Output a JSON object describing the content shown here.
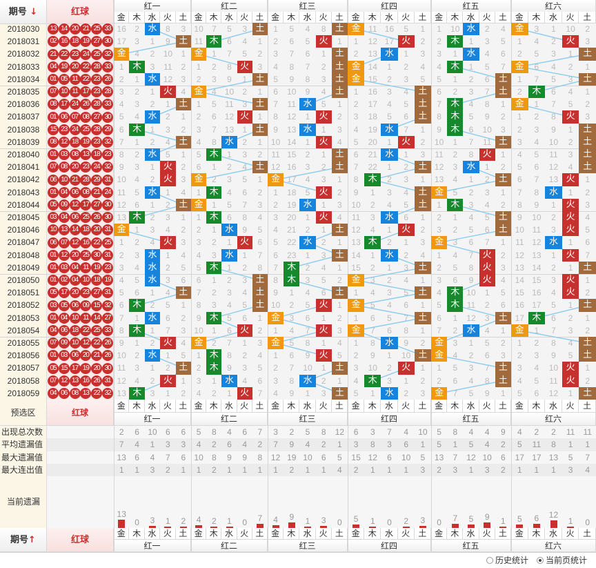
{
  "header": {
    "issue_label": "期号",
    "issue_sort_icon": "arrow-down-icon",
    "red_label": "红球"
  },
  "groups": [
    "红一",
    "红二",
    "红三",
    "红四",
    "红五",
    "红六"
  ],
  "elements": [
    "金",
    "木",
    "水",
    "火",
    "土"
  ],
  "element_colors": {
    "金": "#f0980f",
    "木": "#15892c",
    "水": "#1684dc",
    "火": "#c8302e",
    "土": "#a06a3c"
  },
  "line_color": "#8ccbee",
  "number_element_cycle": [
    "水",
    "土",
    "木",
    "木",
    "土",
    "火",
    "火",
    "土",
    "金",
    "金",
    "土",
    "水"
  ],
  "first_row_omission": [
    [
      16,
      2,
      null,
      8,
      3
    ],
    [
      10,
      7,
      5,
      3,
      null
    ],
    [
      1,
      5,
      4,
      8,
      null
    ],
    [
      null,
      11,
      16,
      5,
      1
    ],
    [
      1,
      10,
      null,
      2,
      4
    ],
    [
      null,
      3,
      1,
      10,
      2
    ]
  ],
  "rows": [
    {
      "issue": "2018030",
      "balls": [
        "13",
        "14",
        "20",
        "21",
        "25",
        "33"
      ]
    },
    {
      "issue": "2018031",
      "balls": [
        "02",
        "16",
        "18",
        "19",
        "27",
        "30"
      ]
    },
    {
      "issue": "2018032",
      "balls": [
        "21",
        "22",
        "23",
        "24",
        "25",
        "32"
      ]
    },
    {
      "issue": "2018033",
      "balls": [
        "04",
        "19",
        "20",
        "22",
        "28",
        "33"
      ]
    },
    {
      "issue": "2018034",
      "balls": [
        "01",
        "05",
        "11",
        "22",
        "23",
        "26"
      ]
    },
    {
      "issue": "2018035",
      "balls": [
        "07",
        "10",
        "11",
        "17",
        "23",
        "28"
      ]
    },
    {
      "issue": "2018036",
      "balls": [
        "08",
        "17",
        "24",
        "26",
        "28",
        "33"
      ]
    },
    {
      "issue": "2018037",
      "balls": [
        "01",
        "06",
        "07",
        "08",
        "27",
        "30"
      ]
    },
    {
      "issue": "2018038",
      "balls": [
        "15",
        "23",
        "24",
        "25",
        "28",
        "29"
      ]
    },
    {
      "issue": "2018039",
      "balls": [
        "08",
        "12",
        "18",
        "19",
        "23",
        "32"
      ]
    },
    {
      "issue": "2018040",
      "balls": [
        "01",
        "03",
        "08",
        "13",
        "18",
        "23"
      ]
    },
    {
      "issue": "2018041",
      "balls": [
        "07",
        "08",
        "20",
        "23",
        "24",
        "32"
      ]
    },
    {
      "issue": "2018042",
      "balls": [
        "06",
        "10",
        "21",
        "28",
        "29",
        "31"
      ]
    },
    {
      "issue": "2018043",
      "balls": [
        "01",
        "04",
        "06",
        "08",
        "21",
        "24"
      ]
    },
    {
      "issue": "2018044",
      "balls": [
        "05",
        "09",
        "12",
        "17",
        "27",
        "30"
      ]
    },
    {
      "issue": "2018045",
      "balls": [
        "03",
        "04",
        "06",
        "25",
        "26",
        "30"
      ]
    },
    {
      "issue": "2018046",
      "balls": [
        "10",
        "13",
        "14",
        "18",
        "20",
        "31"
      ]
    },
    {
      "issue": "2018047",
      "balls": [
        "06",
        "07",
        "12",
        "16",
        "22",
        "25"
      ]
    },
    {
      "issue": "2018048",
      "balls": [
        "01",
        "12",
        "20",
        "25",
        "30",
        "31"
      ]
    },
    {
      "issue": "2018049",
      "balls": [
        "01",
        "03",
        "04",
        "11",
        "19",
        "23"
      ]
    },
    {
      "issue": "2018050",
      "balls": [
        "01",
        "02",
        "04",
        "10",
        "18",
        "19"
      ]
    },
    {
      "issue": "2018051",
      "balls": [
        "05",
        "17",
        "20",
        "23",
        "27",
        "31"
      ]
    },
    {
      "issue": "2018052",
      "balls": [
        "03",
        "05",
        "06",
        "09",
        "15",
        "32"
      ]
    },
    {
      "issue": "2018053",
      "balls": [
        "01",
        "04",
        "10",
        "11",
        "14",
        "27"
      ]
    },
    {
      "issue": "2018054",
      "balls": [
        "04",
        "06",
        "18",
        "22",
        "25",
        "33"
      ]
    },
    {
      "issue": "2018055",
      "balls": [
        "07",
        "09",
        "10",
        "12",
        "22",
        "26"
      ]
    },
    {
      "issue": "2018056",
      "balls": [
        "01",
        "03",
        "06",
        "20",
        "21",
        "26"
      ]
    },
    {
      "issue": "2018057",
      "balls": [
        "05",
        "15",
        "17",
        "19",
        "20",
        "30"
      ]
    },
    {
      "issue": "2018058",
      "balls": [
        "07",
        "12",
        "13",
        "16",
        "26",
        "31"
      ]
    },
    {
      "issue": "2018059",
      "balls": [
        "04",
        "06",
        "08",
        "13",
        "22",
        "32"
      ]
    }
  ],
  "preselect": {
    "label": "预选区",
    "red_label": "红球"
  },
  "stats": [
    {
      "label": "出现总次数",
      "values": [
        2,
        6,
        10,
        6,
        6,
        5,
        8,
        4,
        6,
        7,
        3,
        2,
        5,
        8,
        12,
        6,
        3,
        7,
        4,
        10,
        5,
        8,
        4,
        4,
        9,
        4,
        2,
        2,
        11,
        11
      ]
    },
    {
      "label": "平均遗漏值",
      "values": [
        7,
        4,
        1,
        3,
        3,
        4,
        2,
        6,
        4,
        2,
        7,
        9,
        4,
        2,
        1,
        3,
        8,
        3,
        6,
        1,
        5,
        1,
        5,
        4,
        2,
        5,
        11,
        8,
        1,
        1
      ]
    },
    {
      "label": "最大遗漏值",
      "values": [
        13,
        6,
        4,
        7,
        6,
        10,
        8,
        9,
        9,
        8,
        12,
        19,
        10,
        6,
        5,
        15,
        12,
        6,
        10,
        5,
        13,
        7,
        12,
        10,
        6,
        17,
        17,
        13,
        5,
        7
      ]
    },
    {
      "label": "最大连出值",
      "values": [
        1,
        1,
        3,
        2,
        1,
        1,
        2,
        1,
        1,
        1,
        1,
        2,
        1,
        1,
        4,
        2,
        1,
        1,
        1,
        3,
        2,
        3,
        1,
        3,
        2,
        1,
        1,
        1,
        3,
        4
      ]
    }
  ],
  "current_omission": {
    "label": "当前遗漏",
    "values": [
      13,
      0,
      3,
      1,
      2,
      4,
      2,
      1,
      0,
      7,
      4,
      9,
      1,
      3,
      0,
      5,
      1,
      0,
      2,
      3,
      0,
      7,
      5,
      9,
      1,
      5,
      6,
      12,
      1,
      0
    ]
  },
  "footer": {
    "issue_label": "期号",
    "issue_sort_icon": "arrow-up-icon",
    "red_label": "红球"
  },
  "stat_mode": {
    "options": [
      "历史统计",
      "当前页统计"
    ],
    "selected": "当前页统计"
  }
}
